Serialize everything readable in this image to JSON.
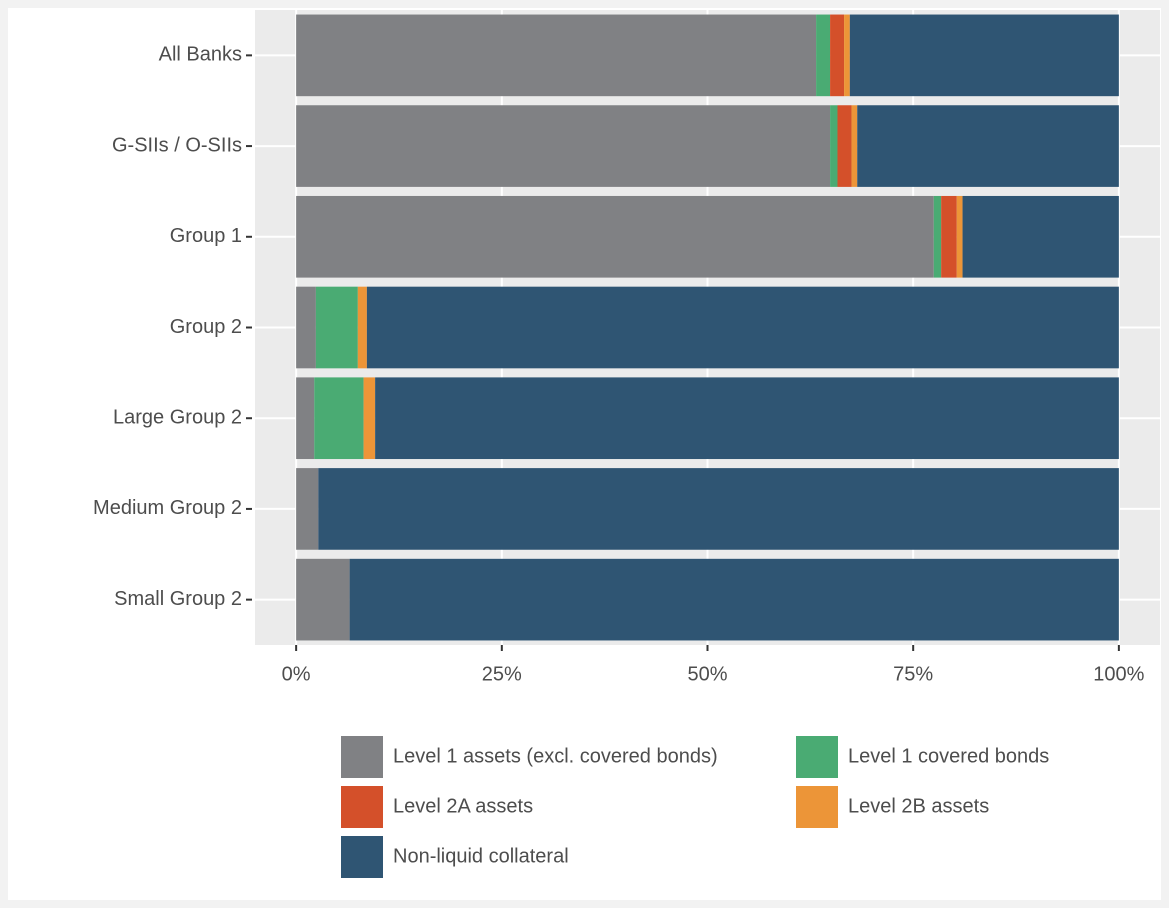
{
  "chart_data": {
    "type": "stacked-barh",
    "categories": [
      "All Banks",
      "G-SIIs / O-SIIs",
      "Group 1",
      "Group 2",
      "Large Group 2",
      "Medium Group 2",
      "Small Group 2"
    ],
    "series": [
      {
        "name": "Level 1 assets (excl. covered bonds)",
        "color": "#808184",
        "values": [
          63.2,
          64.9,
          77.5,
          2.4,
          2.2,
          2.7,
          6.5
        ]
      },
      {
        "name": "Level 1 covered bonds",
        "color": "#4aab73",
        "values": [
          1.7,
          0.9,
          0.9,
          5.1,
          6.0,
          0,
          0
        ]
      },
      {
        "name": "Level 2A assets",
        "color": "#d4502a",
        "values": [
          1.7,
          1.7,
          1.9,
          0,
          0,
          0,
          0
        ]
      },
      {
        "name": "Level 2B assets",
        "color": "#ec9538",
        "values": [
          0.7,
          0.7,
          0.7,
          1.1,
          1.4,
          0,
          0
        ]
      },
      {
        "name": "Non-liquid collateral",
        "color": "#2f5573",
        "values": [
          32.7,
          31.8,
          19.0,
          91.4,
          90.4,
          97.3,
          93.5
        ]
      }
    ],
    "xlim": [
      -5,
      105
    ],
    "xticks": [
      {
        "value": 0,
        "label": "0%"
      },
      {
        "value": 25,
        "label": "25%"
      },
      {
        "value": 50,
        "label": "50%"
      },
      {
        "value": 75,
        "label": "75%"
      },
      {
        "value": 100,
        "label": "100%"
      }
    ],
    "grid": true,
    "legend": "bottom"
  }
}
